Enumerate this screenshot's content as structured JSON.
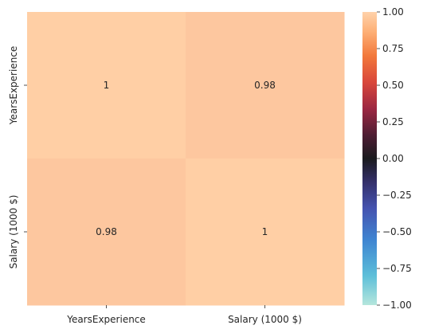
{
  "chart_data": {
    "type": "heatmap",
    "title": "",
    "xlabel": "",
    "ylabel": "",
    "x_categories": [
      "YearsExperience",
      "Salary (1000 $)"
    ],
    "y_categories": [
      "YearsExperience",
      "Salary (1000 $)"
    ],
    "values": [
      [
        1.0,
        0.98
      ],
      [
        0.98,
        1.0
      ]
    ],
    "annotations": [
      [
        "1",
        "0.98"
      ],
      [
        "0.98",
        "1"
      ]
    ],
    "vmin": -1.0,
    "vmax": 1.0,
    "colormap": "icefire",
    "colorbar_ticks": [
      {
        "value": 1.0,
        "label": "1.00"
      },
      {
        "value": 0.75,
        "label": "0.75"
      },
      {
        "value": 0.5,
        "label": "0.50"
      },
      {
        "value": 0.25,
        "label": "0.25"
      },
      {
        "value": 0.0,
        "label": "0.00"
      },
      {
        "value": -0.25,
        "label": "−0.25"
      },
      {
        "value": -0.5,
        "label": "−0.50"
      },
      {
        "value": -0.75,
        "label": "−0.75"
      },
      {
        "value": -1.0,
        "label": "−1.00"
      }
    ],
    "colors": {
      "cell_1_00": "#ffcfa5",
      "cell_0_98": "#fdc79f",
      "text": "#262626"
    }
  }
}
